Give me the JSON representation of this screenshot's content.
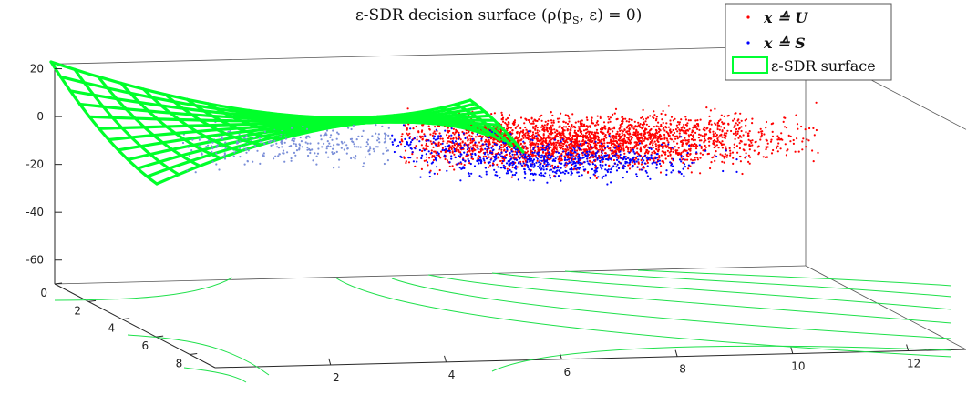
{
  "chart_data": {
    "type": "surface3d",
    "title": "ε-SDR decision surface (ρ(pS, ε) = 0)",
    "z_ticks": [
      20,
      0,
      -20,
      -40,
      -60
    ],
    "y_ticks": [
      0,
      2,
      4,
      6,
      8
    ],
    "x_ticks": [
      2,
      4,
      6,
      8,
      10,
      12
    ],
    "zlim": [
      -70,
      22
    ],
    "xlim": [
      0,
      13
    ],
    "ylim": [
      0,
      9.5
    ],
    "grid": "off",
    "legend_position": "top-right",
    "legend": [
      {
        "label": "x ≙ U",
        "kind": "points",
        "color": "#ff0000"
      },
      {
        "label": "x ≙ S",
        "kind": "points",
        "color": "#0000ff"
      },
      {
        "label": "ε-SDR surface",
        "kind": "surface",
        "color": "#00ff33"
      }
    ],
    "series": [
      {
        "name": "x ≙ U",
        "color": "#ff0000",
        "approx_points": 2600
      },
      {
        "name": "x ≙ S",
        "color": "#0000ff",
        "approx_points": 1100
      }
    ]
  },
  "labels": {
    "title_main": "ε-SDR decision surface (ρ(p",
    "title_sub": "S",
    "title_end": ", ε) = 0)",
    "legend_u": "x ≙ U",
    "legend_s": "x ≙ S",
    "legend_surface": "ε-SDR surface"
  }
}
